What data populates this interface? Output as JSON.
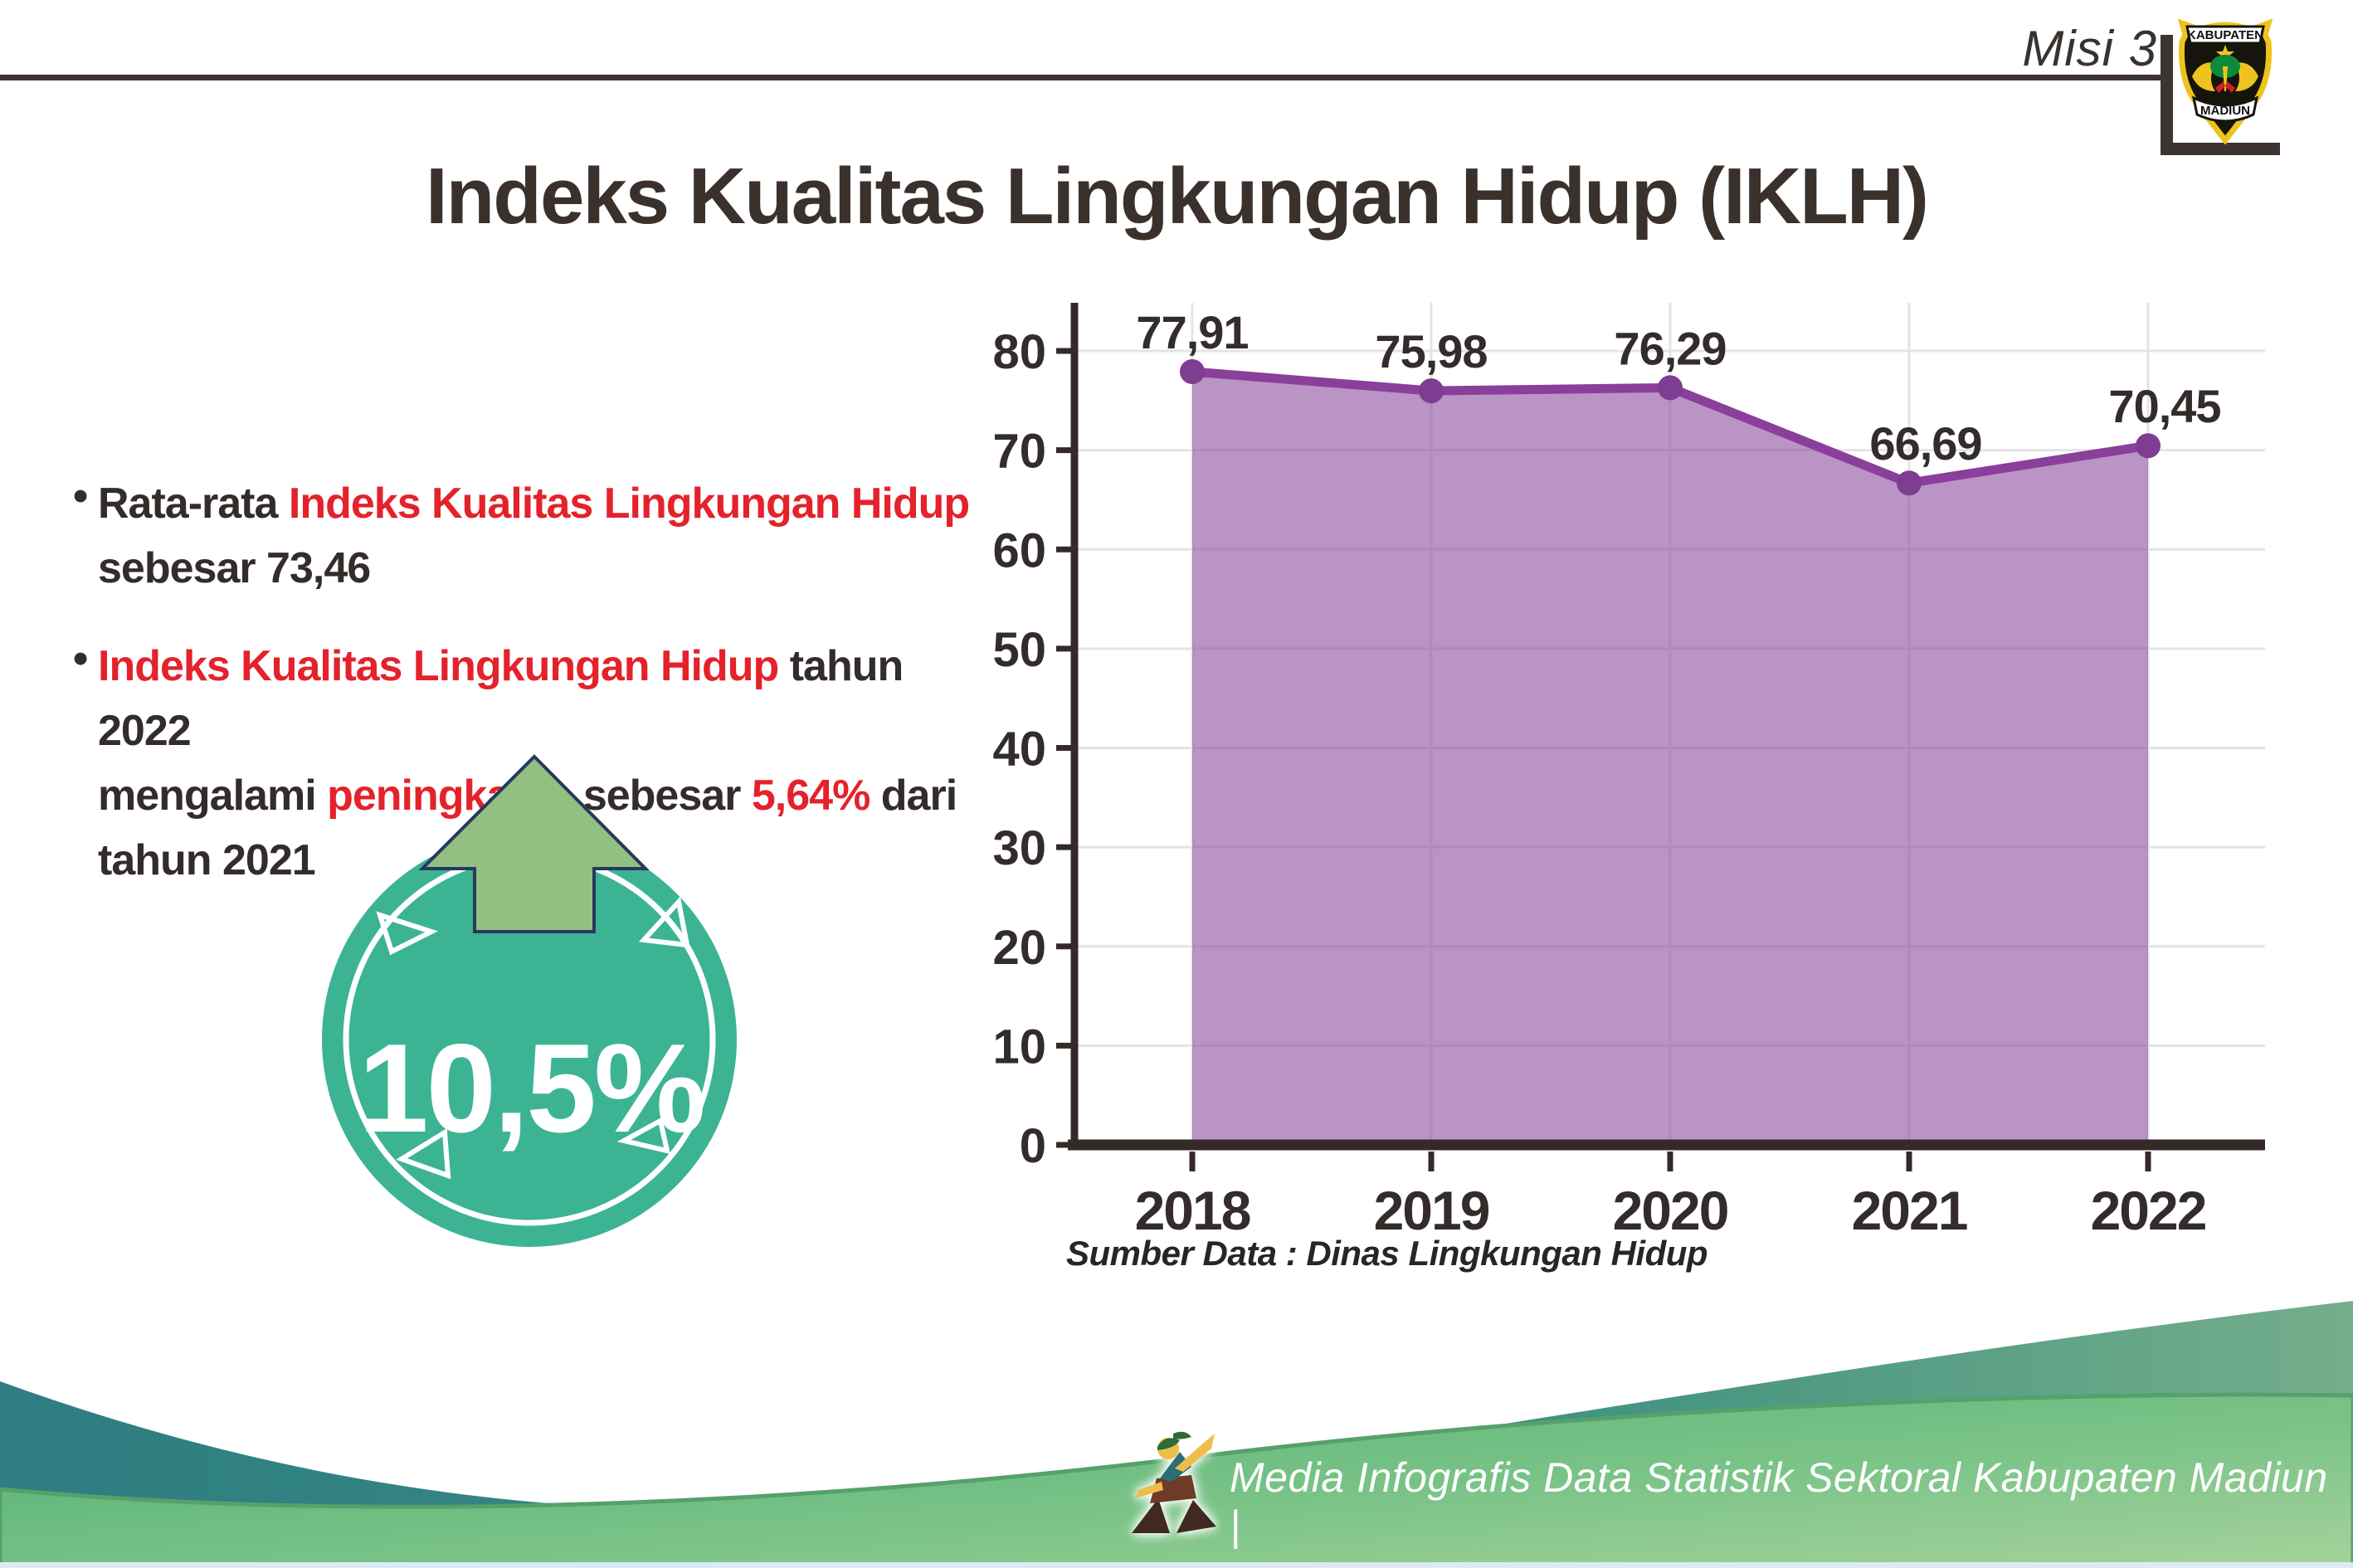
{
  "header": {
    "misi_label": "Misi 3",
    "logo_text_top": "KABUPATEN",
    "logo_text_bottom": "MADIUN"
  },
  "title": "Indeks Kualitas Lingkungan Hidup (IKLH)",
  "bullets": [
    {
      "lines": [
        [
          {
            "t": "Rata-rata ",
            "c": "dark"
          },
          {
            "t": "Indeks Kualitas Lingkungan Hidup",
            "c": "red"
          }
        ],
        [
          {
            "t": "sebesar 73,46",
            "c": "dark"
          }
        ]
      ]
    },
    {
      "lines": [
        [
          {
            "t": "Indeks Kualitas Lingkungan Hidup",
            "c": "red"
          },
          {
            "t": " tahun 2022",
            "c": "dark"
          }
        ],
        [
          {
            "t": "mengalami ",
            "c": "dark"
          },
          {
            "t": "peningkatan",
            "c": "red"
          },
          {
            "t": " sebesar ",
            "c": "dark"
          },
          {
            "t": "5,64%",
            "c": "red"
          },
          {
            "t": " dari",
            "c": "dark"
          }
        ],
        [
          {
            "t": "tahun 2021",
            "c": "dark"
          }
        ]
      ]
    }
  ],
  "badge": {
    "value": "10,5%",
    "direction": "up-arrow"
  },
  "chart_data": {
    "type": "area",
    "categories": [
      "2018",
      "2019",
      "2020",
      "2021",
      "2022"
    ],
    "values": [
      77.91,
      75.98,
      76.29,
      66.69,
      70.45
    ],
    "value_labels": [
      "77,91",
      "75,98",
      "76,29",
      "66,69",
      "70,45"
    ],
    "title": "",
    "xlabel": "",
    "ylabel": "",
    "ylim": [
      0,
      80
    ],
    "ytick_step": 10,
    "grid": true,
    "legend": "none",
    "source": "Sumber Data : Dinas Lingkungan Hidup"
  },
  "footer": {
    "text": "Media Infografis Data Statistik Sektoral Kabupaten Madiun |"
  },
  "colors": {
    "dark_text": "#332c2a",
    "red_text": "#e4222b",
    "title_text": "#3a312d",
    "line_purple": "#8a3f9b",
    "dot_purple": "#7d3d90",
    "area_purple": "#8a469c",
    "grid_gray": "#e4e4e4",
    "axis_dark": "#342b28",
    "badge_teal": "#3cb494",
    "arrow_green": "#92c083",
    "arrow_outline_navy": "#27395c",
    "wave_teal": "#2e7e82",
    "wave_green": "#4fae72",
    "wave_green_light": "#a6d29b"
  }
}
